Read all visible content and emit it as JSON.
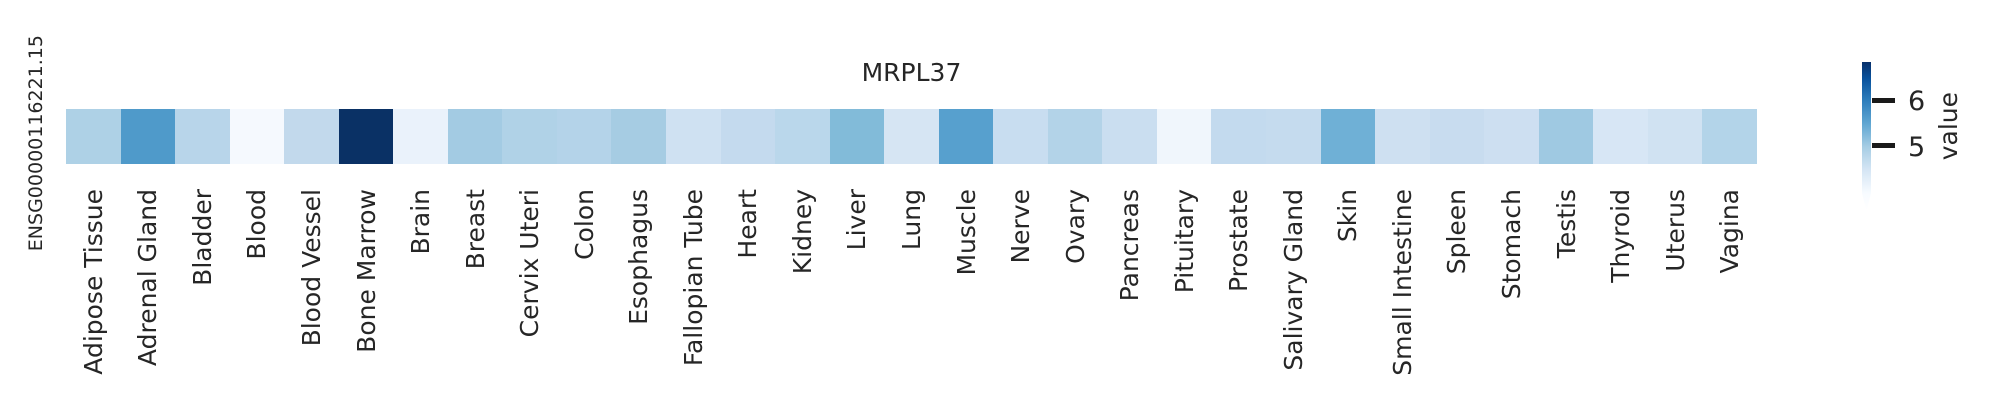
{
  "title": "MRPL37",
  "row_label": "ENSG00000116221.15",
  "colorbar": {
    "label": "value",
    "ticks": [
      "6",
      "5"
    ]
  },
  "chart_data": {
    "type": "heatmap",
    "title": "MRPL37",
    "rows": [
      "ENSG00000116221.15"
    ],
    "categories": [
      "Adipose Tissue",
      "Adrenal Gland",
      "Bladder",
      "Blood",
      "Blood Vessel",
      "Bone Marrow",
      "Brain",
      "Breast",
      "Cervix Uteri",
      "Colon",
      "Esophagus",
      "Fallopian Tube",
      "Heart",
      "Kidney",
      "Liver",
      "Lung",
      "Muscle",
      "Nerve",
      "Ovary",
      "Pancreas",
      "Pituitary",
      "Prostate",
      "Salivary Gland",
      "Skin",
      "Small Intestine",
      "Spleen",
      "Stomach",
      "Testis",
      "Thyroid",
      "Uterus",
      "Vagina"
    ],
    "values": [
      4.95,
      5.7,
      4.85,
      3.9,
      4.75,
      6.8,
      4.2,
      5.05,
      4.95,
      4.9,
      5.0,
      4.55,
      4.7,
      4.8,
      5.3,
      4.45,
      5.65,
      4.6,
      4.9,
      4.6,
      4.1,
      4.7,
      4.7,
      5.45,
      4.5,
      4.65,
      4.55,
      5.1,
      4.45,
      4.5,
      4.9
    ],
    "cell_colors": [
      "#aed1e6",
      "#4f9aca",
      "#b8d5ea",
      "#f5f9fe",
      "#c2d9ec",
      "#0a3165",
      "#eaf2fb",
      "#a3cbe3",
      "#b0d2e7",
      "#b4d3e9",
      "#a6cce3",
      "#cfe1f2",
      "#c4daee",
      "#bad7eb",
      "#82bbd9",
      "#d6e5f3",
      "#57a0ce",
      "#c8ddf0",
      "#b3d3e8",
      "#cadef0",
      "#f0f6fc",
      "#c3daee",
      "#c5dbee",
      "#6fb0d6",
      "#cee0f1",
      "#c8dcef",
      "#cddff1",
      "#9fc9e2",
      "#d7e6f5",
      "#d0e2f2",
      "#b3d4e9"
    ],
    "colormap": "Blues",
    "colorbar": {
      "label": "value",
      "tick_labels": [
        "6",
        "5"
      ],
      "value_range_estimate": [
        4.0,
        6.85
      ],
      "extend": "min",
      "position": "right"
    },
    "x_tick_rotation": 90,
    "grid": false
  },
  "colors": {
    "background": "#ffffff",
    "text": "#262626",
    "tick_mark": "#1a1a1a",
    "cmap_dark": "#08306b",
    "cmap_light": "#f7fbff"
  }
}
